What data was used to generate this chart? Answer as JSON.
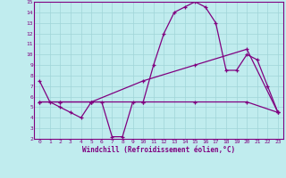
{
  "xlabel": "Windchill (Refroidissement éolien,°C)",
  "background_color": "#c0ecee",
  "grid_color": "#a0d4d8",
  "line_color": "#800080",
  "spine_color": "#800080",
  "xlim": [
    -0.5,
    23.5
  ],
  "ylim": [
    2,
    15
  ],
  "xticks": [
    0,
    1,
    2,
    3,
    4,
    5,
    6,
    7,
    8,
    9,
    10,
    11,
    12,
    13,
    14,
    15,
    16,
    17,
    18,
    19,
    20,
    21,
    22,
    23
  ],
  "yticks": [
    2,
    3,
    4,
    5,
    6,
    7,
    8,
    9,
    10,
    11,
    12,
    13,
    14,
    15
  ],
  "line1_x": [
    0,
    1,
    2,
    3,
    4,
    5,
    6,
    7,
    8,
    9,
    10,
    11,
    12,
    13,
    14,
    15,
    16,
    17,
    18,
    19,
    20,
    21,
    22,
    23
  ],
  "line1_y": [
    7.5,
    5.5,
    5.0,
    4.5,
    4.0,
    5.5,
    5.5,
    2.2,
    2.2,
    5.5,
    5.5,
    9.0,
    12.0,
    14.0,
    14.5,
    15.0,
    14.5,
    13.0,
    8.5,
    8.5,
    10.0,
    9.5,
    7.0,
    4.5
  ],
  "line2_x": [
    0,
    2,
    5,
    10,
    15,
    20,
    23
  ],
  "line2_y": [
    5.5,
    5.5,
    5.5,
    5.5,
    5.5,
    5.5,
    4.5
  ],
  "line3_x": [
    0,
    2,
    5,
    10,
    15,
    20,
    23
  ],
  "line3_y": [
    5.5,
    5.5,
    5.5,
    7.5,
    9.0,
    10.5,
    4.5
  ]
}
